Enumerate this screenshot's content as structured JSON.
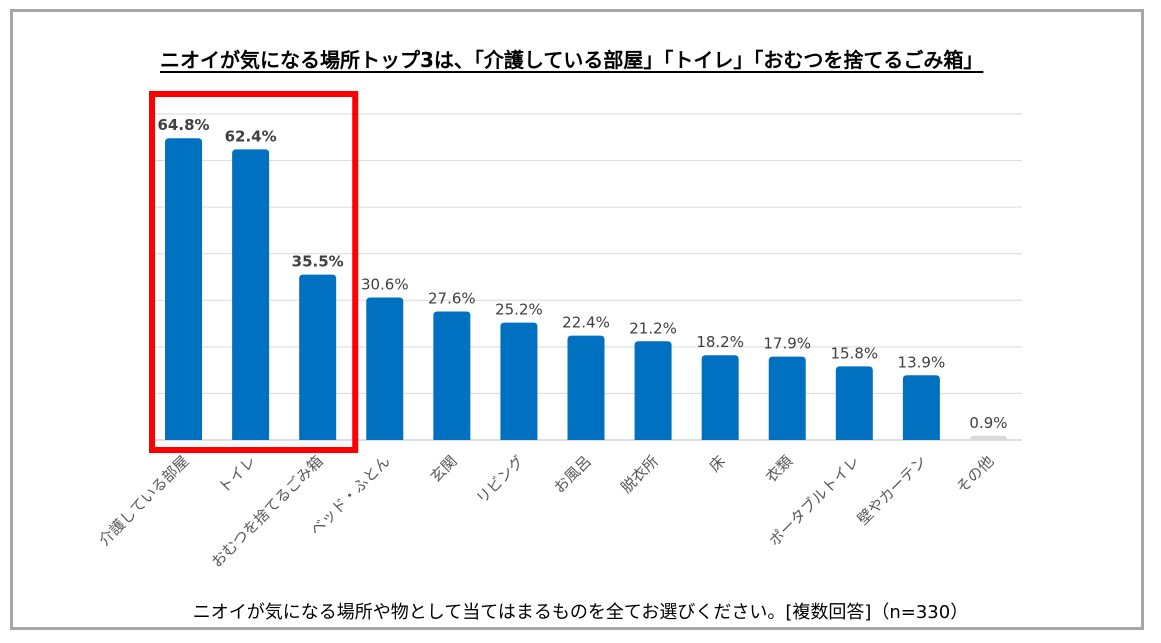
{
  "title": "ニオイが気になる場所トップ3は、「介護している部屋」「トイレ」「おむつを捨てるごみ箱」",
  "footer": "ニオイが気になる場所や物として当てはまるものを全てお選びください。[複数回答]（n=330）",
  "colors": {
    "bar": "#0070c0",
    "bar_other": "#d9d9d9",
    "highlight": "#ff0000",
    "grid": "#d9d9d9",
    "label": "#404040"
  },
  "chart_data": {
    "type": "bar",
    "title": "ニオイが気になる場所トップ3は、「介護している部屋」「トイレ」「おむつを捨てるごみ箱」",
    "categories": [
      "介護している部屋",
      "トイレ",
      "おむつを捨てるごみ箱",
      "ベッド・ふとん",
      "玄関",
      "リビング",
      "お風呂",
      "脱衣所",
      "床",
      "衣類",
      "ポータブルトイレ",
      "壁やカーテン",
      "その他"
    ],
    "values": [
      64.8,
      62.4,
      35.5,
      30.6,
      27.6,
      25.2,
      22.4,
      21.2,
      18.2,
      17.9,
      15.8,
      13.9,
      0.9
    ],
    "value_labels": [
      "64.8%",
      "62.4%",
      "35.5%",
      "30.6%",
      "27.6%",
      "25.2%",
      "22.4%",
      "21.2%",
      "18.2%",
      "17.9%",
      "15.8%",
      "13.9%",
      "0.9%"
    ],
    "highlighted_top": 3,
    "ylim": [
      0,
      70
    ],
    "grid": true,
    "xlabel": "",
    "ylabel": ""
  }
}
